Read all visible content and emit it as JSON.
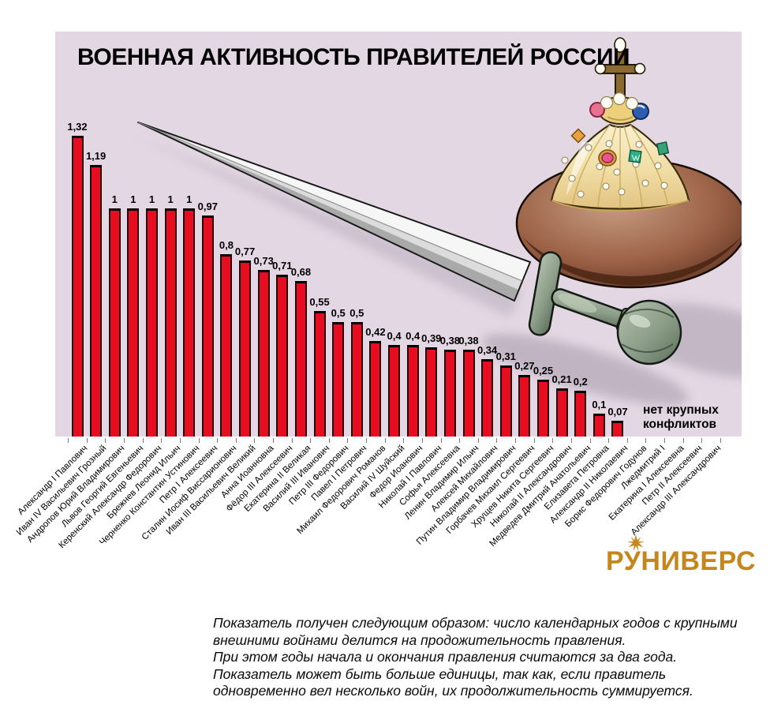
{
  "title": "ВОЕННАЯ АКТИВНОСТЬ ПРАВИТЕЛЕЙ РОССИИ",
  "no_conflicts": {
    "line1": "нет крупных",
    "line2": "конфликтов"
  },
  "logo": {
    "prefix": "Р",
    "star_letter": "У",
    "suffix": "НИВЕРС",
    "color": "#c5861b",
    "icon": "sunburst-icon"
  },
  "decorations": {
    "left": "sword-illustration",
    "right": "monomakh-cap-crown-illustration"
  },
  "colors": {
    "plot_background": "#e3d7e3",
    "bar": "#e60d20",
    "bar_cap": "#000000",
    "logo_gold": "#c5861b"
  },
  "footnote": {
    "lines": [
      "Показатель получен следующим образом: число календарных годов с крупными",
      "внешними войнами делится на продожительность правления.",
      "При этом годы начала и окончания правления считаются за два года.",
      "Показатель может быть больше единицы, так как, если правитель",
      "одновременно вел несколько войн, их продолжительность суммируется."
    ]
  },
  "chart_data": {
    "type": "bar",
    "title": "ВОЕННАЯ АКТИВНОСТЬ ПРАВИТЕЛЕЙ РОССИИ",
    "xlabel": "",
    "ylabel": "",
    "ylim": [
      0,
      1.4
    ],
    "grid": false,
    "annotation": "нет крупных конфликтов",
    "categories": [
      "Александр I Павлович",
      "Иван IV Васильевич Грозный",
      "Андропов Юрий Владимирович",
      "Львов Георгий Евгеньевич",
      "Керенский Александр Федорович",
      "Брежнев Леонид Ильич",
      "Черненко Константин Устинович",
      "Петр I Алексеевич",
      "Сталин Иосиф Виссарионович",
      "Иван III Васильевич Великий",
      "Анна Иоанновна",
      "Фёдор III Алексеевич",
      "Екатерина II Великая",
      "Василий III Иванович",
      "Петр III Федорович",
      "Павел I Петрович",
      "Михаил Федорович Романов",
      "Василий IV Шуйский",
      "Федор Иоанович",
      "Николай I Павлович",
      "Софья Алексеевна",
      "Ленин Владимир Ильич",
      "Алексей Михайлович",
      "Путин Владимир Владимирович",
      "Горбачев Михаил Сергеевич",
      "Хрущев Никита Сергеевич",
      "Николай II Александрович",
      "Медведев Дмитрий Анатольевич",
      "Елизавета Петровна",
      "Александр II Николаевич",
      "Борис Федорович Годунов",
      "Лжедмитрий I",
      "Екатерина I Алексеевна",
      "Петр II Алексеевич",
      "Александр III Александрович"
    ],
    "values": [
      1.32,
      1.19,
      1,
      1,
      1,
      1,
      1,
      0.97,
      0.8,
      0.77,
      0.73,
      0.71,
      0.68,
      0.55,
      0.5,
      0.5,
      0.42,
      0.4,
      0.4,
      0.39,
      0.38,
      0.38,
      0.34,
      0.31,
      0.27,
      0.25,
      0.21,
      0.2,
      0.1,
      0.07,
      null,
      null,
      null,
      null,
      null
    ],
    "value_labels": [
      "1,32",
      "1,19",
      "1",
      "1",
      "1",
      "1",
      "1",
      "0,97",
      "0,8",
      "0,77",
      "0,73",
      "0,71",
      "0,68",
      "0,55",
      "0,5",
      "0,5",
      "0,42",
      "0,4",
      "0,4",
      "0,39",
      "0,38",
      "0,38",
      "0,34",
      "0,31",
      "0,27",
      "0,25",
      "0,21",
      "0,2",
      "0,1",
      "0,07",
      null,
      null,
      null,
      null,
      null
    ]
  }
}
